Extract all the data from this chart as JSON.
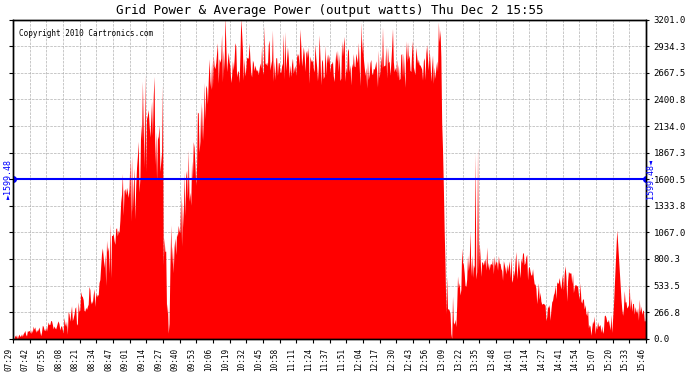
{
  "title": "Grid Power & Average Power (output watts) Thu Dec 2 15:55",
  "copyright": "Copyright 2010 Cartronics.com",
  "average_value": 1599.48,
  "ymax": 3201.0,
  "ymin": 0.0,
  "yticks": [
    0.0,
    266.8,
    533.5,
    800.3,
    1067.0,
    1333.8,
    1600.5,
    1867.3,
    2134.0,
    2400.8,
    2667.5,
    2934.3,
    3201.0
  ],
  "fill_color": "#FF0000",
  "avg_line_color": "#0000FF",
  "background_color": "#FFFFFF",
  "grid_color": "#AAAAAA",
  "xtick_labels": [
    "07:29",
    "07:42",
    "07:55",
    "08:08",
    "08:21",
    "08:34",
    "08:47",
    "09:01",
    "09:14",
    "09:27",
    "09:40",
    "09:53",
    "10:06",
    "10:19",
    "10:32",
    "10:45",
    "10:58",
    "11:11",
    "11:24",
    "11:37",
    "11:51",
    "12:04",
    "12:17",
    "12:30",
    "12:43",
    "12:56",
    "13:09",
    "13:22",
    "13:35",
    "13:48",
    "14:01",
    "14:14",
    "14:27",
    "14:41",
    "14:54",
    "15:07",
    "15:20",
    "15:33",
    "15:46"
  ]
}
